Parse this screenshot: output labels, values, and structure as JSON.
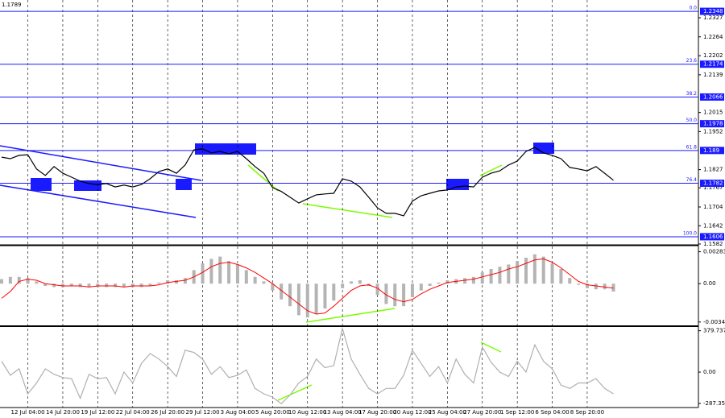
{
  "chart_data": [
    {
      "type": "line",
      "title": "1.1789",
      "color": "#000000",
      "categories": [
        null,
        null,
        null,
        "12 Jul 04:00",
        null,
        null,
        null,
        "14 Jul 20:00",
        null,
        null,
        null,
        "19 Jul 12:00",
        null,
        null,
        null,
        "22 Jul 04:00",
        null,
        null,
        null,
        "26 Jul 20:00",
        null,
        null,
        null,
        "29 Jul 12:00",
        null,
        null,
        null,
        "3 Aug 04:00",
        null,
        null,
        null,
        "5 Aug 20:00",
        null,
        null,
        null,
        "10 Aug 12:00",
        null,
        null,
        null,
        "13 Aug 04:00",
        null,
        null,
        null,
        "17 Aug 20:00",
        null,
        null,
        null,
        "20 Aug 12:00",
        null,
        null,
        null,
        "25 Aug 04:00",
        null,
        null,
        null,
        "27 Aug 20:00",
        null,
        null,
        null,
        "1 Sep 12:00",
        null,
        null,
        null,
        "6 Sep 04:00",
        null,
        null,
        null,
        "8 Sep 20:00",
        null,
        null,
        null
      ],
      "values": [
        1.1868,
        1.1863,
        1.1874,
        1.1876,
        1.1829,
        1.1808,
        1.1837,
        1.1815,
        1.1802,
        1.1789,
        1.1781,
        1.1778,
        1.1781,
        1.177,
        1.1776,
        1.177,
        1.1778,
        1.1797,
        1.1821,
        1.1829,
        1.1815,
        1.1842,
        1.1892,
        1.1895,
        1.1882,
        1.1887,
        1.1879,
        1.1887,
        1.1863,
        1.1837,
        1.1815,
        1.1768,
        1.1755,
        1.1736,
        1.1717,
        1.1731,
        1.1744,
        1.1747,
        1.1749,
        1.1797,
        1.1789,
        1.177,
        1.1736,
        1.1701,
        1.1683,
        1.1683,
        1.1675,
        1.1723,
        1.1741,
        1.1749,
        1.1757,
        1.176,
        1.177,
        1.1773,
        1.177,
        1.1802,
        1.1815,
        1.1823,
        1.1842,
        1.1855,
        1.1887,
        1.19,
        1.1882,
        1.1874,
        1.1863,
        1.1834,
        1.1829,
        1.1823,
        1.1837,
        1.1815,
        1.1792
      ],
      "ylim": [
        1.1582,
        1.238
      ],
      "yticks": [
        1.2327,
        1.2264,
        1.2202,
        1.2139,
        1.2015,
        1.1952,
        1.1827,
        1.1767,
        1.1704,
        1.1642,
        1.1582
      ],
      "fib_color": "#1a1aff",
      "fib_levels": [
        {
          "ratio": "0.0",
          "price": 1.2348
        },
        {
          "ratio": "23.6",
          "price": 1.2174
        },
        {
          "ratio": "38.2",
          "price": 1.2066
        },
        {
          "ratio": "50.0",
          "price": 1.1978
        },
        {
          "ratio": "61.8",
          "price": 1.189
        },
        {
          "ratio": "76.4",
          "price": 1.1782
        },
        {
          "ratio": "100.0",
          "price": 1.1606
        }
      ],
      "grid": true
    },
    {
      "type": "bar",
      "color": "#b4b4b4",
      "signal_color": "#ff0000",
      "values": [
        0.0004,
        0.0006,
        0.0006,
        0.0005,
        0.0002,
        -0.0002,
        -0.0003,
        -0.0003,
        -0.0002,
        -0.0003,
        -0.0003,
        -0.0003,
        -0.0003,
        -0.0003,
        -0.0003,
        -0.0003,
        -0.0003,
        -0.0002,
        0.0001,
        0.0003,
        0.0003,
        0.0005,
        0.0012,
        0.0018,
        0.0022,
        0.0024,
        0.002,
        0.0017,
        0.0012,
        0.0006,
        0.0002,
        -0.0006,
        -0.0014,
        -0.002,
        -0.0028,
        -0.003,
        -0.0027,
        -0.0022,
        -0.0015,
        -0.0004,
        0.0002,
        0.0003,
        -0.0002,
        -0.001,
        -0.0018,
        -0.002,
        -0.002,
        -0.0012,
        -0.0006,
        -0.0002,
        0.0001,
        0.0003,
        0.0004,
        0.0005,
        0.0006,
        0.001,
        0.0013,
        0.0015,
        0.0017,
        0.002,
        0.0023,
        0.0026,
        0.0024,
        0.0018,
        0.0013,
        0.0005,
        -0.0001,
        -0.0004,
        -0.0005,
        -0.0005,
        -0.0007
      ],
      "signal_values": [
        -0.0013,
        -0.0007,
        0.0002,
        0.0004,
        0.0003,
        0,
        -0.0001,
        -0.0002,
        -0.0002,
        -0.0002,
        -0.0003,
        -0.0002,
        -0.0002,
        -0.0002,
        -0.0003,
        -0.0002,
        -0.0002,
        -0.0002,
        -0.0001,
        0.0001,
        0.0002,
        0.0003,
        0.0006,
        0.001,
        0.0015,
        0.0018,
        0.0019,
        0.0017,
        0.0014,
        0.001,
        0.0005,
        0,
        -0.0006,
        -0.0012,
        -0.0018,
        -0.0024,
        -0.0027,
        -0.0026,
        -0.002,
        -0.0013,
        -0.0006,
        -0.0002,
        -0.0001,
        -0.0004,
        -0.001,
        -0.0014,
        -0.0016,
        -0.0014,
        -0.0009,
        -0.0005,
        -0.0002,
        0.0001,
        0.0002,
        0.0003,
        0.0004,
        0.0006,
        0.0008,
        0.001,
        0.0013,
        0.0015,
        0.0018,
        0.0021,
        0.0022,
        0.0019,
        0.0014,
        0.0008,
        0.0002,
        -0.0001,
        -0.0002,
        -0.0003,
        -0.0004
      ],
      "ylim": [
        -0.0037,
        0.0033
      ],
      "yticks": [
        0.00283,
        {
          "value": 0,
          "label": "0.00"
        },
        -0.0034
      ]
    },
    {
      "type": "line",
      "color": "#b0b0b0",
      "values": [
        100,
        -30,
        30,
        -200,
        -100,
        30,
        -20,
        -50,
        -60,
        -240,
        -20,
        -60,
        -50,
        -200,
        0,
        -100,
        80,
        170,
        120,
        50,
        -40,
        200,
        180,
        120,
        -20,
        50,
        -50,
        -30,
        20,
        -150,
        -200,
        -230,
        -290,
        -210,
        -100,
        -40,
        120,
        40,
        60,
        400,
        120,
        -20,
        -150,
        -200,
        -150,
        -150,
        -30,
        200,
        80,
        -40,
        50,
        -100,
        120,
        -20,
        -100,
        230,
        90,
        0,
        -40,
        100,
        0,
        250,
        100,
        30,
        -120,
        -150,
        -100,
        -100,
        -60,
        -150,
        -200
      ],
      "ylim": [
        -318,
        414
      ],
      "yticks": [
        379.7378,
        {
          "value": 0,
          "label": "0.00"
        },
        -287.352
      ]
    }
  ]
}
